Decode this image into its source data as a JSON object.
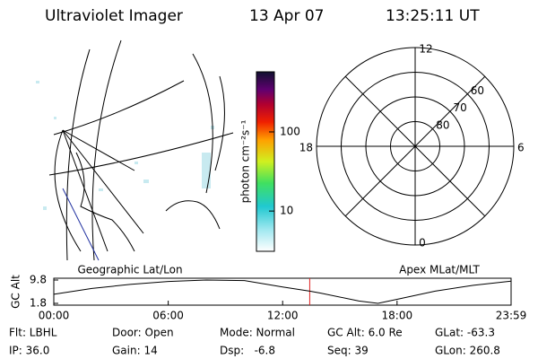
{
  "header": {
    "instrument": "Ultraviolet Imager",
    "date": "13 Apr 07",
    "time": "13:25:11 UT"
  },
  "colorbar": {
    "label": "photon cm⁻²s⁻¹",
    "clim": [
      3.1,
      575
    ],
    "log": true,
    "ticks": [
      10,
      100
    ]
  },
  "polar": {
    "rlim": [
      90,
      50
    ],
    "rings": [
      80,
      70,
      60
    ],
    "mlt_labels": [
      "12",
      "6",
      "0",
      "18"
    ]
  },
  "orbit": {
    "left_label": "Geographic Lat/Lon",
    "right_label": "Apex MLat/MLT",
    "ylabel": "GC Alt",
    "xlim": [
      0,
      23.98
    ],
    "xticks": [
      {
        "value": 0,
        "label": "00:00"
      },
      {
        "value": 6,
        "label": "06:00"
      },
      {
        "value": 12,
        "label": "12:00"
      },
      {
        "value": 18,
        "label": "18:00"
      },
      {
        "value": 23.98,
        "label": "23:59"
      }
    ],
    "ylim": [
      1.8,
      9.8
    ],
    "yticks": [
      9.8,
      1.8
    ],
    "x": [
      0,
      2,
      4,
      6,
      8,
      10,
      12,
      13.42,
      14,
      16,
      17,
      18,
      20,
      22,
      23.98
    ],
    "values": [
      4.9,
      6.9,
      8.3,
      9.3,
      9.8,
      9.6,
      7.4,
      6.0,
      5.3,
      2.6,
      1.8,
      3.2,
      6.0,
      8.0,
      9.4
    ],
    "current_time": 13.42,
    "current_color": "#e02020"
  },
  "footer": [
    [
      "Flt: LBHL",
      "Door: Open",
      "Mode: Normal",
      "GC Alt: 6.0 Re",
      "GLat: -63.3"
    ],
    [
      "IP: 36.0",
      "Gain: 14",
      "Dsp:   -6.8",
      "Seq: 39",
      "GLon: 260.8"
    ]
  ]
}
